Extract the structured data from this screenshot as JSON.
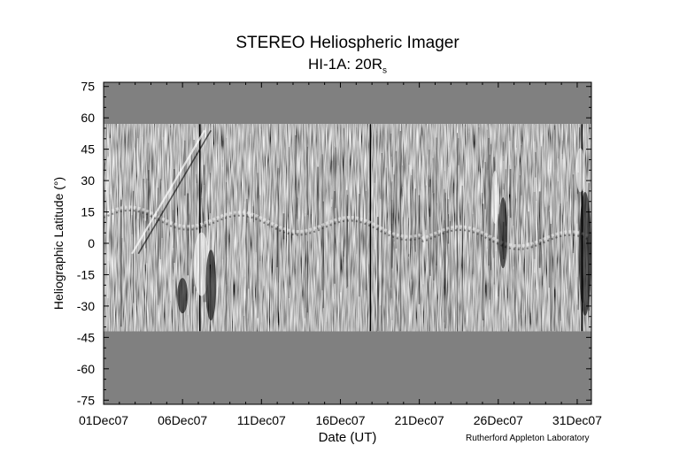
{
  "chart_data": {
    "type": "heatmap",
    "title": "STEREO Heliospheric Imager",
    "subtitle_main": "HI-1A: 20R",
    "subtitle_sub": "s",
    "xlabel": "Date (UT)",
    "ylabel": "Heliographic Latitude (°)",
    "x_ticks": [
      "01Dec07",
      "06Dec07",
      "11Dec07",
      "16Dec07",
      "21Dec07",
      "26Dec07",
      "31Dec07"
    ],
    "x_tick_days": [
      0,
      5,
      10,
      15,
      20,
      25,
      30
    ],
    "xlim_days": [
      0,
      30.9
    ],
    "y_ticks": [
      75,
      60,
      45,
      30,
      15,
      0,
      -15,
      -30,
      -45,
      -60,
      -75
    ],
    "ylim": [
      -77,
      77
    ],
    "data_lat_range": [
      -42,
      57
    ],
    "colormap": "grayscale running-difference",
    "credit": "Rutherford Appleton Laboratory",
    "colors": {
      "nodata": "#808080",
      "background": "#ffffff"
    }
  }
}
